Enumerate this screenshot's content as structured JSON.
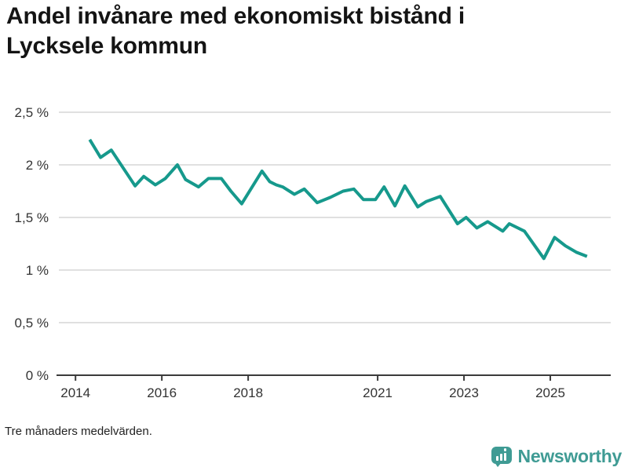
{
  "header": {
    "title_line1": "Andel invånare med ekonomiskt bistånd i",
    "title_line2": "Lycksele kommun"
  },
  "footnote": "Tre månaders medelvärden.",
  "brand": {
    "name": "Newsworthy",
    "icon": "bar-chart-speech-bubble-icon",
    "color": "#3f9b94"
  },
  "colors": {
    "line": "#16998c",
    "grid": "#e0e0e0",
    "axis": "#3b3b3b",
    "tick_label": "#333333",
    "title_text": "#141414"
  },
  "chart_data": {
    "type": "line",
    "title": "Andel invånare med ekonomiskt bistånd i Lycksele kommun",
    "note": "Tre månaders medelvärden.",
    "unit": "%",
    "grid": true,
    "legend": "none",
    "xlim": [
      2013.56,
      2026.4
    ],
    "ylim": [
      0,
      2.5
    ],
    "x_ticks": [
      {
        "label": "2014",
        "value": 2014
      },
      {
        "label": "2016",
        "value": 2016
      },
      {
        "label": "2018",
        "value": 2018
      },
      {
        "label": "2021",
        "value": 2021
      },
      {
        "label": "2023",
        "value": 2023
      },
      {
        "label": "2025",
        "value": 2025
      }
    ],
    "y_ticks": [
      {
        "label": "0 %",
        "value": 0
      },
      {
        "label": "0,5 %",
        "value": 0.5
      },
      {
        "label": "1 %",
        "value": 1
      },
      {
        "label": "1,5 %",
        "value": 1.5
      },
      {
        "label": "2 %",
        "value": 2
      },
      {
        "label": "2,5 %",
        "value": 2.5
      }
    ],
    "series": [
      {
        "name": "Andel invånare med ekonomiskt bistånd",
        "color": "#16998c",
        "points": [
          [
            2014.33,
            2.24
          ],
          [
            2014.58,
            2.07
          ],
          [
            2014.83,
            2.14
          ],
          [
            2015.38,
            1.8
          ],
          [
            2015.58,
            1.89
          ],
          [
            2015.85,
            1.81
          ],
          [
            2016.08,
            1.87
          ],
          [
            2016.36,
            2.0
          ],
          [
            2016.55,
            1.86
          ],
          [
            2016.85,
            1.79
          ],
          [
            2017.08,
            1.87
          ],
          [
            2017.38,
            1.87
          ],
          [
            2017.6,
            1.75
          ],
          [
            2017.85,
            1.63
          ],
          [
            2018.32,
            1.94
          ],
          [
            2018.5,
            1.84
          ],
          [
            2018.65,
            1.81
          ],
          [
            2018.8,
            1.79
          ],
          [
            2019.07,
            1.72
          ],
          [
            2019.3,
            1.77
          ],
          [
            2019.6,
            1.64
          ],
          [
            2019.9,
            1.69
          ],
          [
            2020.2,
            1.75
          ],
          [
            2020.45,
            1.77
          ],
          [
            2020.67,
            1.67
          ],
          [
            2020.95,
            1.67
          ],
          [
            2021.15,
            1.79
          ],
          [
            2021.4,
            1.61
          ],
          [
            2021.63,
            1.8
          ],
          [
            2021.93,
            1.6
          ],
          [
            2022.12,
            1.65
          ],
          [
            2022.45,
            1.7
          ],
          [
            2022.85,
            1.44
          ],
          [
            2023.05,
            1.5
          ],
          [
            2023.3,
            1.4
          ],
          [
            2023.55,
            1.46
          ],
          [
            2023.9,
            1.37
          ],
          [
            2024.05,
            1.44
          ],
          [
            2024.4,
            1.37
          ],
          [
            2024.85,
            1.11
          ],
          [
            2025.1,
            1.31
          ],
          [
            2025.35,
            1.23
          ],
          [
            2025.6,
            1.17
          ],
          [
            2025.85,
            1.13
          ]
        ]
      }
    ]
  }
}
